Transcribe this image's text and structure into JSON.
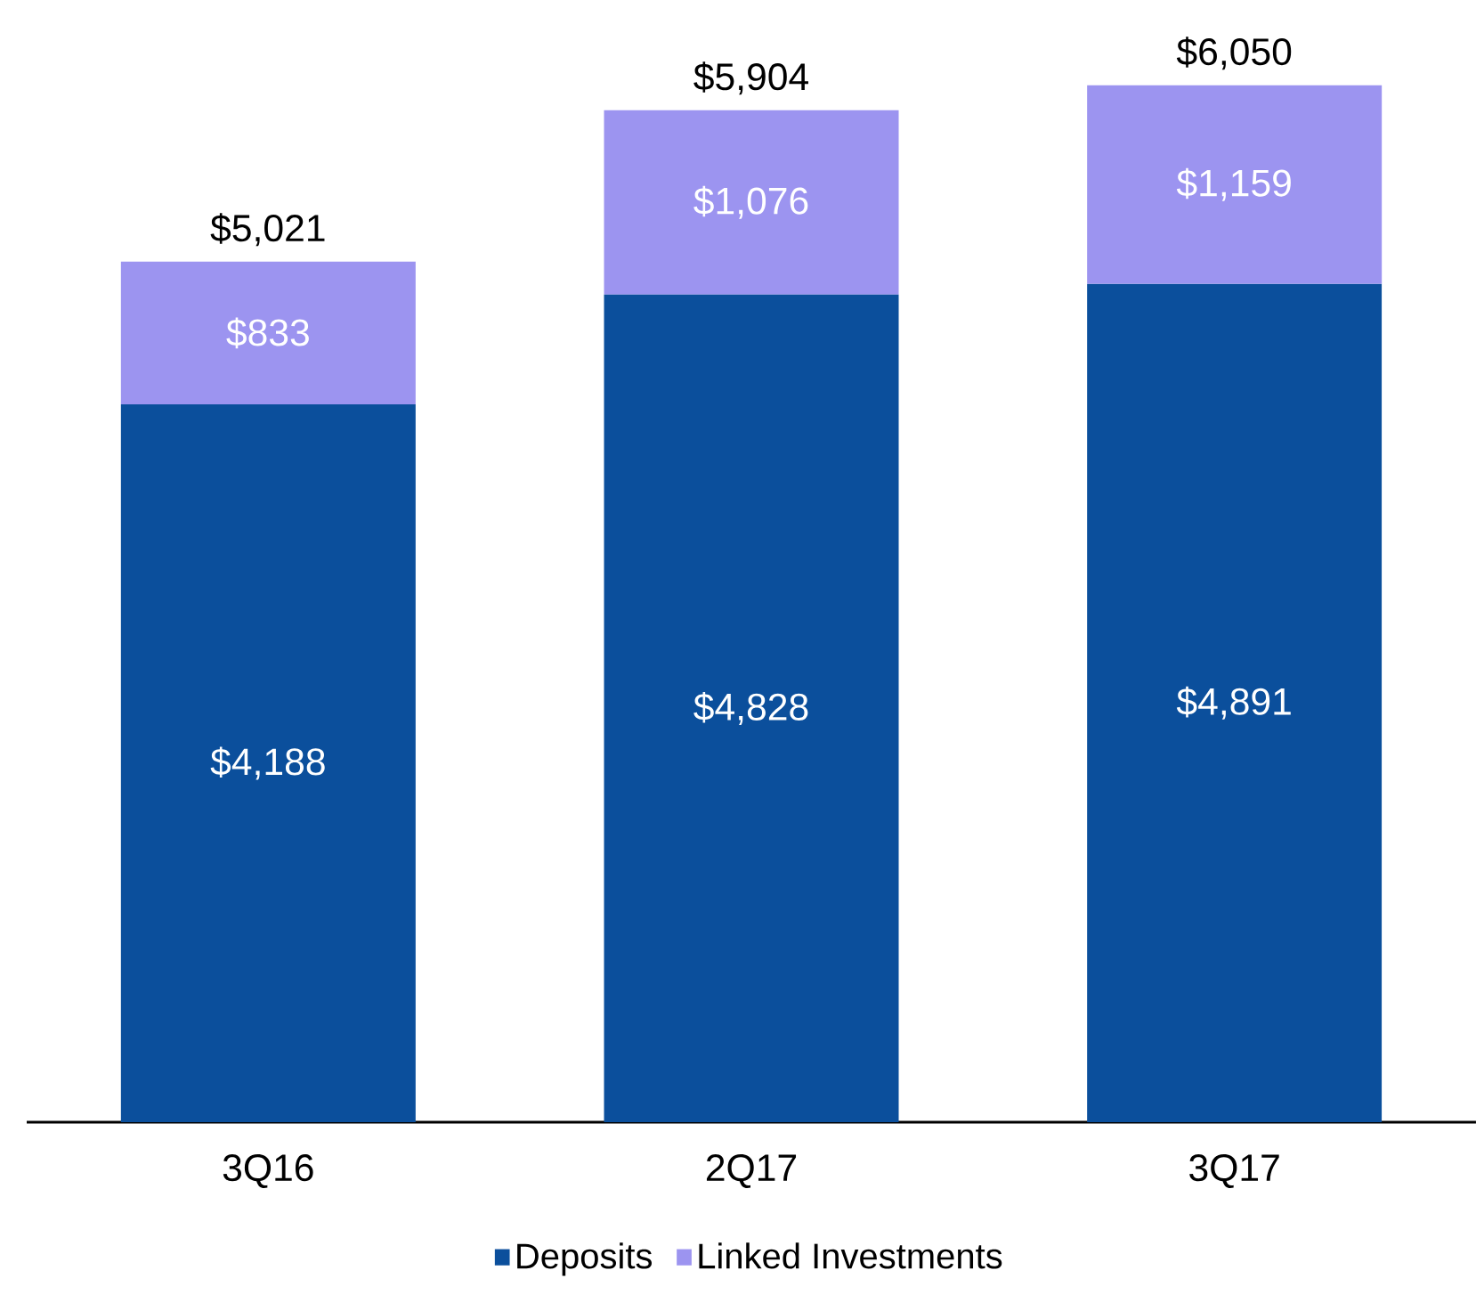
{
  "chart_data": {
    "type": "bar",
    "stacked": true,
    "categories": [
      "3Q16",
      "2Q17",
      "3Q17"
    ],
    "series": [
      {
        "name": "Deposits",
        "color": "#0b4f9c",
        "values": [
          4188,
          4828,
          4891
        ],
        "value_labels": [
          "$4,188",
          "$4,828",
          "$4,891"
        ]
      },
      {
        "name": "Linked Investments",
        "color": "#9c94f0",
        "values": [
          833,
          1076,
          1159
        ],
        "value_labels": [
          "$833",
          "$1,076",
          "$1,159"
        ]
      }
    ],
    "totals": [
      "$5,021",
      "$5,904",
      "$6,050"
    ],
    "legend": "bottom"
  }
}
